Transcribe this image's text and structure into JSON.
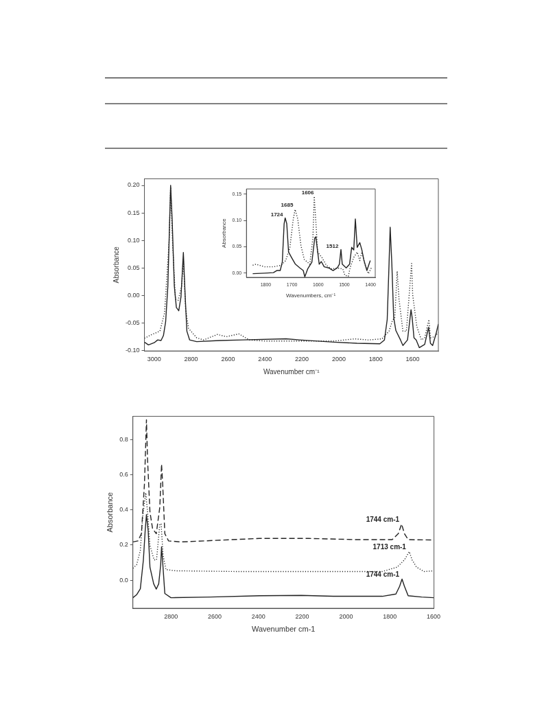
{
  "chart_data": [
    {
      "type": "line",
      "xlabel": "Wavenumber cm⁻¹",
      "ylabel": "Absorbance",
      "marker": "none",
      "legend": false,
      "xlim": [
        3053,
        1461
      ],
      "ylim": [
        -0.101,
        0.212
      ],
      "xticks": [
        3000,
        2800,
        2600,
        2400,
        2200,
        2000,
        1800,
        1600
      ],
      "yticks": [
        {
          "value": -0.1,
          "label": "-0.10"
        },
        {
          "value": -0.05,
          "label": "-0.05"
        },
        {
          "value": 0,
          "label": "0.00"
        },
        {
          "value": 0.05,
          "label": "0.05"
        },
        {
          "value": 0.1,
          "label": "0.10"
        },
        {
          "value": 0.15,
          "label": "0.15"
        },
        {
          "value": 0.2,
          "label": "0.20"
        }
      ],
      "series": [
        {
          "color": "#222222",
          "line_style": "solid",
          "x": [
            3053,
            3031,
            3000,
            2981,
            2963,
            2950,
            2938,
            2926,
            2916,
            2911,
            2903,
            2891,
            2880,
            2867,
            2855,
            2842,
            2832,
            2823,
            2808,
            2770,
            2646,
            2522,
            2286,
            2212,
            2026,
            1902,
            1778,
            1753,
            1738,
            1728,
            1722,
            1713,
            1703,
            1691,
            1666,
            1653,
            1628,
            1609,
            1603,
            1593,
            1581,
            1564,
            1535,
            1514,
            1504,
            1492,
            1473,
            1461
          ],
          "values": [
            -0.085,
            -0.09,
            -0.086,
            -0.081,
            -0.082,
            -0.073,
            -0.048,
            0.017,
            0.14,
            0.2,
            0.14,
            0.017,
            -0.022,
            -0.028,
            -0.003,
            0.078,
            -0.003,
            -0.065,
            -0.081,
            -0.084,
            -0.082,
            -0.081,
            -0.079,
            -0.081,
            -0.085,
            -0.087,
            -0.088,
            -0.081,
            -0.044,
            0.058,
            0.124,
            0.058,
            -0.04,
            -0.064,
            -0.081,
            -0.091,
            -0.081,
            -0.026,
            -0.04,
            -0.077,
            -0.081,
            -0.095,
            -0.089,
            -0.058,
            -0.087,
            -0.091,
            -0.069,
            -0.052
          ]
        },
        {
          "color": "#222222",
          "line_style": "dotted",
          "x": [
            3053,
            3019,
            2969,
            2944,
            2919,
            2911,
            2901,
            2885,
            2870,
            2851,
            2842,
            2830,
            2814,
            2770,
            2733,
            2658,
            2609,
            2541,
            2485,
            2398,
            2212,
            2026,
            1914,
            1840,
            1766,
            1728,
            1710,
            1697,
            1684,
            1674,
            1653,
            1634,
            1606,
            1600,
            1578,
            1553,
            1535,
            1512,
            1504,
            1479,
            1461
          ],
          "values": [
            -0.078,
            -0.072,
            -0.065,
            -0.032,
            0.099,
            0.197,
            0.099,
            -0.007,
            -0.009,
            0.017,
            0.066,
            -0.024,
            -0.06,
            -0.077,
            -0.081,
            -0.071,
            -0.075,
            -0.07,
            -0.081,
            -0.083,
            -0.083,
            -0.083,
            -0.079,
            -0.081,
            -0.079,
            -0.065,
            -0.046,
            -0.04,
            0.044,
            -0.007,
            -0.065,
            -0.065,
            0.058,
            0.001,
            -0.056,
            -0.081,
            -0.077,
            -0.044,
            -0.077,
            -0.075,
            -0.067
          ]
        }
      ]
    },
    {
      "type": "line",
      "xlabel": "Wavenumbers, cm⁻¹",
      "ylabel": "Absorbance",
      "marker": "none",
      "legend": false,
      "xlim": [
        1874,
        1382
      ],
      "ylim": [
        -0.008,
        0.16
      ],
      "xticks": [
        1800,
        1700,
        1600,
        1500,
        1400
      ],
      "yticks": [
        {
          "value": 0,
          "label": "0.00"
        },
        {
          "value": 0.05,
          "label": "0.05"
        },
        {
          "value": 0.1,
          "label": "0.10"
        },
        {
          "value": 0.15,
          "label": "0.15"
        }
      ],
      "annotations": [
        {
          "text": "1724",
          "x": 1724,
          "y": 0.105
        },
        {
          "text": "1685",
          "x": 1685,
          "y": 0.123
        },
        {
          "text": "1606",
          "x": 1606,
          "y": 0.146
        },
        {
          "text": "1512",
          "x": 1512,
          "y": 0.045
        }
      ],
      "series": [
        {
          "color": "#222222",
          "line_style": "solid",
          "x": [
            1850,
            1804,
            1771,
            1758,
            1745,
            1737,
            1730,
            1726,
            1720,
            1713,
            1702,
            1687,
            1670,
            1657,
            1651,
            1640,
            1624,
            1613,
            1609,
            1604,
            1596,
            1588,
            1577,
            1560,
            1543,
            1527,
            1519,
            1513,
            1508,
            1493,
            1480,
            1472,
            1464,
            1458,
            1451,
            1441,
            1433,
            1426,
            1414,
            1401
          ],
          "values": [
            -0.001,
            0,
            0.001,
            0.005,
            0.005,
            0.021,
            0.094,
            0.105,
            0.094,
            0.04,
            0.03,
            0.017,
            0.01,
            0.005,
            -0.007,
            0.008,
            0.021,
            0.067,
            0.069,
            0.049,
            0.017,
            0.022,
            0.012,
            0.01,
            0.005,
            0.01,
            0.017,
            0.045,
            0.017,
            0.01,
            0.017,
            0.049,
            0.044,
            0.103,
            0.049,
            0.058,
            0.044,
            0.026,
            0.005,
            0.024
          ]
        },
        {
          "color": "#222222",
          "line_style": "dotted",
          "x": [
            1850,
            1838,
            1804,
            1771,
            1741,
            1724,
            1708,
            1695,
            1688,
            1678,
            1666,
            1653,
            1632,
            1620,
            1615,
            1609,
            1602,
            1586,
            1569,
            1548,
            1527,
            1506,
            1498,
            1485,
            1477,
            1464,
            1451,
            1441,
            1433,
            1422,
            1408,
            1397
          ],
          "values": [
            0.015,
            0.017,
            0.012,
            0.012,
            0.015,
            0.024,
            0.049,
            0.103,
            0.121,
            0.103,
            0.053,
            0.026,
            0.017,
            0.067,
            0.146,
            0.099,
            0.04,
            0.03,
            0.015,
            0.008,
            0.01,
            0.008,
            -0.004,
            -0.006,
            0.012,
            0.03,
            0.04,
            0.024,
            0.04,
            0.017,
            -0.001,
            0.01
          ]
        }
      ]
    },
    {
      "type": "line",
      "xlabel": "Wavenumber cm-1",
      "ylabel": "Absorbance",
      "marker": "none",
      "legend": false,
      "xlim": [
        2974,
        1598
      ],
      "ylim": [
        -0.159,
        0.932
      ],
      "xticks": [
        2800,
        2600,
        2400,
        2200,
        2000,
        1800,
        1600
      ],
      "yticks": [
        {
          "value": 0,
          "label": "0.0"
        },
        {
          "value": 0.2,
          "label": "0.2"
        },
        {
          "value": 0.4,
          "label": "0.4"
        },
        {
          "value": 0.6,
          "label": "0.6"
        },
        {
          "value": 0.8,
          "label": "0.8"
        }
      ],
      "annotations": [
        {
          "text": "1744 cm-1",
          "x": 1744,
          "y": 0.32
        },
        {
          "text": "1713 cm-1",
          "x": 1713,
          "y": 0.163
        },
        {
          "text": "1744 cm-1",
          "x": 1744,
          "y": 0.007
        }
      ],
      "series": [
        {
          "color": "#222222",
          "line_style": "solid",
          "x": [
            2974,
            2957,
            2940,
            2926,
            2918,
            2912,
            2904,
            2896,
            2879,
            2867,
            2856,
            2847,
            2843,
            2837,
            2828,
            2800,
            2620,
            2396,
            2204,
            2058,
            1834,
            1772,
            1755,
            1744,
            1733,
            1716,
            1654,
            1598
          ],
          "values": [
            -0.099,
            -0.082,
            -0.048,
            0.116,
            0.279,
            0.374,
            0.279,
            0.075,
            -0.02,
            -0.05,
            -0.02,
            0.088,
            0.19,
            0.088,
            -0.075,
            -0.099,
            -0.095,
            -0.088,
            -0.086,
            -0.091,
            -0.091,
            -0.078,
            -0.034,
            0.007,
            -0.034,
            -0.088,
            -0.095,
            -0.099
          ]
        },
        {
          "color": "#222222",
          "line_style": "dotted",
          "x": [
            2974,
            2957,
            2940,
            2929,
            2921,
            2915,
            2907,
            2896,
            2877,
            2866,
            2851,
            2845,
            2836,
            2823,
            2778,
            2508,
            2171,
            1834,
            1766,
            1733,
            1711,
            1698,
            1678,
            1643,
            1598
          ],
          "values": [
            0.068,
            0.088,
            0.17,
            0.361,
            0.442,
            0.497,
            0.388,
            0.197,
            0.116,
            0.116,
            0.32,
            0.32,
            0.143,
            0.061,
            0.054,
            0.05,
            0.05,
            0.05,
            0.075,
            0.116,
            0.163,
            0.116,
            0.075,
            0.05,
            0.054
          ]
        },
        {
          "color": "#222222",
          "line_style": "dashed",
          "x": [
            2974,
            2951,
            2935,
            2921,
            2912,
            2907,
            2896,
            2884,
            2867,
            2851,
            2843,
            2838,
            2828,
            2811,
            2755,
            2396,
            2171,
            1946,
            1789,
            1761,
            1746,
            1733,
            1716,
            1598
          ],
          "values": [
            0.218,
            0.224,
            0.265,
            0.551,
            0.912,
            0.687,
            0.388,
            0.293,
            0.265,
            0.415,
            0.66,
            0.551,
            0.265,
            0.224,
            0.218,
            0.238,
            0.238,
            0.231,
            0.231,
            0.265,
            0.32,
            0.265,
            0.231,
            0.229
          ]
        }
      ]
    }
  ]
}
